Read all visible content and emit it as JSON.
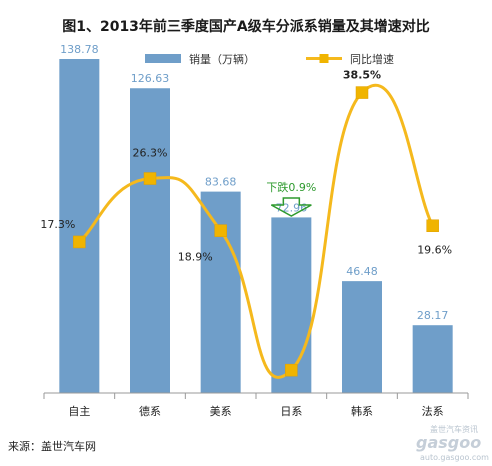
{
  "title": "图1、2013年前三季度国产A级车分派系销量及其增速对比",
  "source": "来源：盖世汽车网",
  "watermark": {
    "cn": "盖世汽车资讯",
    "logo": "gasgoo",
    "url": "auto.gasgoo.com"
  },
  "colors": {
    "bar": "#6f9ec9",
    "line": "#f5b91d",
    "marker": "#f0b400",
    "annotation": "#2e9a2e"
  },
  "chart_data": {
    "type": "bar",
    "title": "图1、2013年前三季度国产A级车分派系销量及其增速对比",
    "categories": [
      "自主",
      "德系",
      "美系",
      "日系",
      "韩系",
      "法系"
    ],
    "series": [
      {
        "name": "销量（万辆）",
        "type": "bar",
        "values": [
          138.78,
          126.63,
          83.68,
          72.96,
          46.48,
          28.17
        ],
        "labels": [
          "138.78",
          "126.63",
          "83.68",
          "72.96",
          "46.48",
          "28.17"
        ]
      },
      {
        "name": "同比增速",
        "type": "line",
        "smooth": true,
        "values": [
          17.3,
          26.3,
          18.9,
          -0.9,
          38.5,
          19.6
        ],
        "labels": [
          "17.3%",
          "26.3%",
          "18.9%",
          "",
          "38.5%",
          "19.6%"
        ]
      }
    ],
    "annotation": {
      "text": "下跌0.9%",
      "category": "日系",
      "arrow": "down"
    },
    "legend": "top",
    "grid": false,
    "ylim_bar": [
      0,
      150
    ],
    "ylim_line": [
      -4,
      40
    ]
  }
}
